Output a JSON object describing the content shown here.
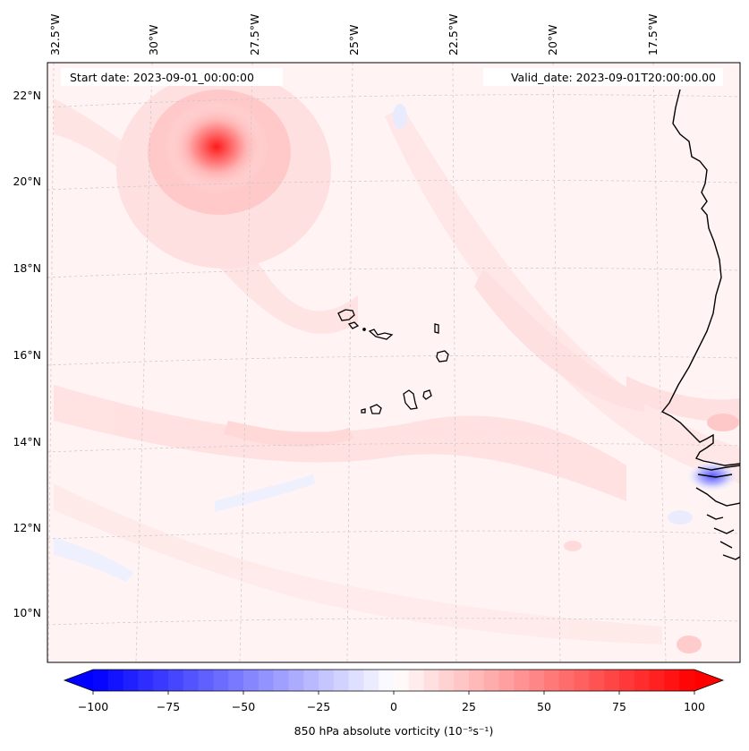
{
  "map": {
    "start_date": "Start date: 2023-09-01_00:00:00",
    "valid_date": "Valid_date: 2023-09-01T20:00:00.00",
    "lon_labels": [
      "32.5°W",
      "30°W",
      "27.5°W",
      "25°W",
      "22.5°W",
      "20°W",
      "17.5°W"
    ],
    "lat_labels": [
      "22°N",
      "20°N",
      "18°N",
      "16°N",
      "14°N",
      "12°N",
      "10°N"
    ]
  },
  "colorbar": {
    "label": "850 hPa absolute vorticity (10⁻⁵s⁻¹)",
    "min": -100,
    "max": 100,
    "ticks": [
      "−100",
      "−75",
      "−50",
      "−25",
      "0",
      "25",
      "50",
      "75",
      "100"
    ],
    "colormap": "bwr",
    "negative_color": "#0000ff",
    "positive_color": "#ff0000"
  },
  "chart_data": {
    "type": "heatmap",
    "variable": "850 hPa absolute vorticity",
    "units": "10^-5 s^-1",
    "lon_range": [
      "32.5°W",
      "15.5°W"
    ],
    "lat_range": [
      "9°N",
      "22.8°N"
    ],
    "features": [
      {
        "kind": "positive maximum",
        "lat": 20.8,
        "lon": -28.6,
        "approx_value": 95
      },
      {
        "kind": "negative minimum",
        "lat": 13.2,
        "lon": -16.2,
        "approx_value": -60
      }
    ]
  }
}
